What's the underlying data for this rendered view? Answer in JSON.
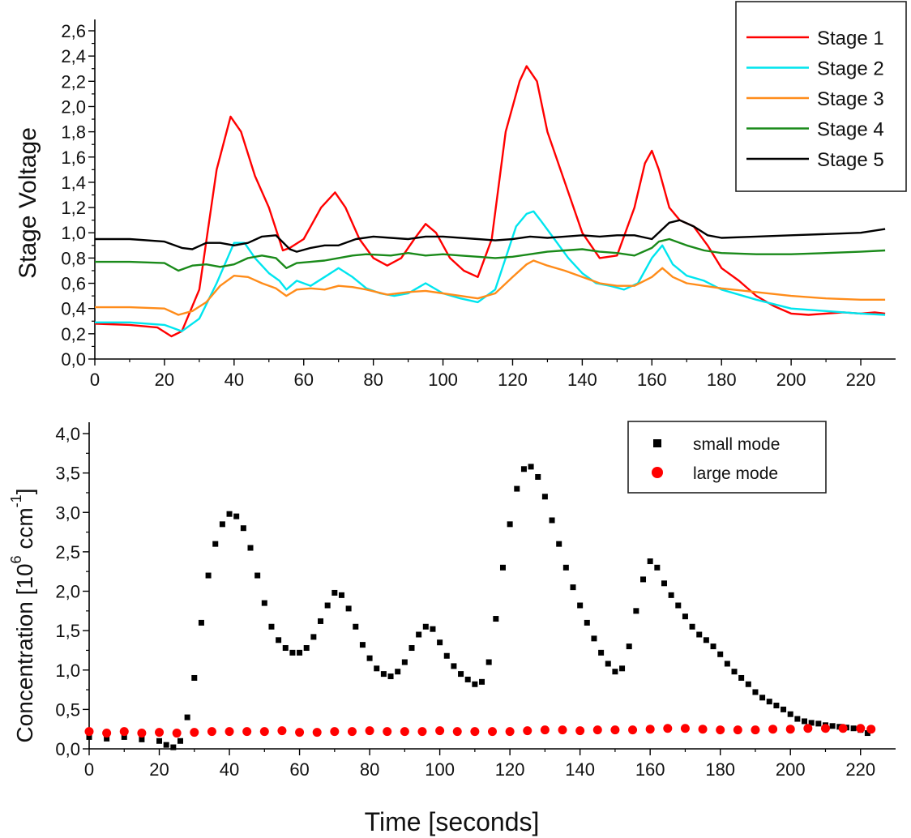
{
  "chart_data": [
    {
      "type": "line",
      "title": "",
      "xlabel": "",
      "ylabel": "Stage Voltage",
      "xlim": [
        0,
        230
      ],
      "ylim": [
        0,
        2.6
      ],
      "x_ticks": [
        0,
        20,
        40,
        60,
        80,
        100,
        120,
        140,
        160,
        180,
        200,
        220
      ],
      "x_tick_labels": [
        "0",
        "20",
        "40",
        "60",
        "80",
        "100",
        "120",
        "140",
        "160",
        "180",
        "200",
        "220"
      ],
      "y_ticks": [
        0,
        0.2,
        0.4,
        0.6,
        0.8,
        1.0,
        1.2,
        1.4,
        1.6,
        1.8,
        2.0,
        2.2,
        2.4,
        2.6
      ],
      "y_tick_labels": [
        "0,0",
        "0,2",
        "0,4",
        "0,6",
        "0,8",
        "1,0",
        "1,2",
        "1,4",
        "1,6",
        "1,8",
        "2,0",
        "2,2",
        "2,4",
        "2,6"
      ],
      "legend_position": "top-right",
      "grid": false,
      "series": [
        {
          "name": "Stage 1",
          "color": "#ff0000",
          "x": [
            0,
            10,
            18,
            22,
            25,
            30,
            35,
            39,
            42,
            46,
            50,
            54,
            56,
            60,
            65,
            69,
            72,
            76,
            80,
            84,
            88,
            92,
            95,
            98,
            102,
            106,
            110,
            114,
            118,
            122,
            124,
            127,
            130,
            135,
            140,
            145,
            150,
            155,
            158,
            160,
            162,
            165,
            168,
            172,
            176,
            180,
            185,
            190,
            195,
            200,
            205,
            210,
            215,
            220,
            224,
            227
          ],
          "y": [
            0.28,
            0.27,
            0.25,
            0.18,
            0.22,
            0.55,
            1.5,
            1.92,
            1.8,
            1.45,
            1.2,
            0.86,
            0.88,
            0.95,
            1.2,
            1.32,
            1.2,
            0.95,
            0.8,
            0.74,
            0.8,
            0.96,
            1.07,
            1.0,
            0.8,
            0.7,
            0.65,
            0.95,
            1.8,
            2.2,
            2.32,
            2.2,
            1.8,
            1.4,
            1.0,
            0.8,
            0.82,
            1.2,
            1.55,
            1.65,
            1.5,
            1.2,
            1.1,
            1.05,
            0.9,
            0.72,
            0.62,
            0.5,
            0.42,
            0.36,
            0.35,
            0.36,
            0.37,
            0.36,
            0.37,
            0.36
          ]
        },
        {
          "name": "Stage 2",
          "color": "#00e5ee",
          "x": [
            0,
            10,
            20,
            25,
            30,
            35,
            40,
            43,
            46,
            50,
            53,
            55,
            58,
            62,
            66,
            70,
            74,
            78,
            82,
            86,
            90,
            95,
            100,
            105,
            110,
            115,
            118,
            121,
            124,
            126,
            128,
            132,
            136,
            140,
            144,
            148,
            152,
            156,
            160,
            163,
            166,
            170,
            175,
            180,
            190,
            200,
            210,
            220,
            227
          ],
          "y": [
            0.29,
            0.29,
            0.27,
            0.22,
            0.32,
            0.6,
            0.92,
            0.92,
            0.8,
            0.68,
            0.62,
            0.55,
            0.62,
            0.58,
            0.65,
            0.72,
            0.65,
            0.56,
            0.52,
            0.5,
            0.52,
            0.6,
            0.52,
            0.48,
            0.45,
            0.55,
            0.8,
            1.05,
            1.15,
            1.17,
            1.1,
            0.95,
            0.8,
            0.68,
            0.6,
            0.58,
            0.55,
            0.6,
            0.8,
            0.9,
            0.75,
            0.66,
            0.62,
            0.55,
            0.47,
            0.4,
            0.38,
            0.36,
            0.35
          ]
        },
        {
          "name": "Stage 3",
          "color": "#ff8c1a",
          "x": [
            0,
            10,
            20,
            24,
            28,
            32,
            36,
            40,
            44,
            48,
            52,
            55,
            58,
            62,
            66,
            70,
            74,
            78,
            84,
            90,
            95,
            100,
            105,
            110,
            115,
            120,
            124,
            126,
            130,
            135,
            140,
            145,
            150,
            155,
            160,
            163,
            166,
            170,
            175,
            180,
            190,
            200,
            210,
            220,
            227
          ],
          "y": [
            0.41,
            0.41,
            0.4,
            0.35,
            0.38,
            0.45,
            0.58,
            0.66,
            0.65,
            0.6,
            0.56,
            0.5,
            0.55,
            0.56,
            0.55,
            0.58,
            0.57,
            0.55,
            0.51,
            0.53,
            0.54,
            0.52,
            0.5,
            0.48,
            0.52,
            0.65,
            0.75,
            0.78,
            0.74,
            0.7,
            0.65,
            0.6,
            0.58,
            0.58,
            0.65,
            0.72,
            0.65,
            0.6,
            0.58,
            0.56,
            0.53,
            0.5,
            0.48,
            0.47,
            0.47
          ]
        },
        {
          "name": "Stage 4",
          "color": "#1a8a1a",
          "x": [
            0,
            10,
            20,
            24,
            28,
            32,
            36,
            40,
            44,
            48,
            52,
            55,
            58,
            62,
            66,
            70,
            74,
            78,
            85,
            90,
            95,
            100,
            105,
            110,
            115,
            120,
            125,
            130,
            135,
            140,
            145,
            150,
            155,
            160,
            162,
            165,
            170,
            175,
            180,
            190,
            200,
            210,
            220,
            227
          ],
          "y": [
            0.77,
            0.77,
            0.76,
            0.7,
            0.74,
            0.75,
            0.73,
            0.75,
            0.8,
            0.82,
            0.8,
            0.72,
            0.76,
            0.77,
            0.78,
            0.8,
            0.82,
            0.83,
            0.82,
            0.84,
            0.82,
            0.83,
            0.82,
            0.81,
            0.8,
            0.81,
            0.83,
            0.85,
            0.86,
            0.87,
            0.85,
            0.84,
            0.82,
            0.88,
            0.93,
            0.95,
            0.9,
            0.86,
            0.84,
            0.83,
            0.83,
            0.84,
            0.85,
            0.86
          ]
        },
        {
          "name": "Stage 5",
          "color": "#000000",
          "x": [
            0,
            10,
            20,
            25,
            28,
            32,
            36,
            40,
            44,
            48,
            52,
            56,
            58,
            62,
            66,
            70,
            75,
            80,
            85,
            90,
            95,
            100,
            110,
            115,
            120,
            125,
            130,
            135,
            140,
            145,
            150,
            155,
            160,
            165,
            168,
            172,
            176,
            180,
            190,
            200,
            210,
            220,
            227
          ],
          "y": [
            0.95,
            0.95,
            0.93,
            0.88,
            0.87,
            0.92,
            0.92,
            0.9,
            0.92,
            0.97,
            0.98,
            0.87,
            0.85,
            0.88,
            0.9,
            0.9,
            0.95,
            0.97,
            0.96,
            0.95,
            0.97,
            0.97,
            0.95,
            0.94,
            0.95,
            0.97,
            0.96,
            0.97,
            0.98,
            0.97,
            0.98,
            0.98,
            0.95,
            1.08,
            1.1,
            1.05,
            0.98,
            0.96,
            0.97,
            0.98,
            0.99,
            1.0,
            1.03
          ]
        }
      ]
    },
    {
      "type": "scatter",
      "title": "",
      "xlabel": "Time [seconds]",
      "ylabel_parts": [
        "Concentration [10",
        "6",
        " ccm",
        "-1",
        "]"
      ],
      "xlim": [
        0,
        230
      ],
      "ylim": [
        0,
        4.0
      ],
      "x_ticks": [
        0,
        20,
        40,
        60,
        80,
        100,
        120,
        140,
        160,
        180,
        200,
        220
      ],
      "x_tick_labels": [
        "0",
        "20",
        "40",
        "60",
        "80",
        "100",
        "120",
        "140",
        "160",
        "180",
        "200",
        "220"
      ],
      "y_ticks": [
        0,
        0.5,
        1.0,
        1.5,
        2.0,
        2.5,
        3.0,
        3.5,
        4.0
      ],
      "y_tick_labels": [
        "0,0",
        "0,5",
        "1,0",
        "1,5",
        "2,0",
        "2,5",
        "3,0",
        "3,5",
        "4,0"
      ],
      "legend_position": "top-right",
      "grid": false,
      "series": [
        {
          "name": "small mode",
          "color": "#000000",
          "marker": "square",
          "x": [
            0,
            5,
            10,
            15,
            20,
            22,
            24,
            26,
            28,
            30,
            32,
            34,
            36,
            38,
            40,
            42,
            44,
            46,
            48,
            50,
            52,
            54,
            56,
            58,
            60,
            62,
            64,
            66,
            68,
            70,
            72,
            74,
            76,
            78,
            80,
            82,
            84,
            86,
            88,
            90,
            92,
            94,
            96,
            98,
            100,
            102,
            104,
            106,
            108,
            110,
            112,
            114,
            116,
            118,
            120,
            122,
            124,
            126,
            128,
            130,
            132,
            134,
            136,
            138,
            140,
            142,
            144,
            146,
            148,
            150,
            152,
            154,
            156,
            158,
            160,
            162,
            164,
            166,
            168,
            170,
            172,
            174,
            176,
            178,
            180,
            182,
            184,
            186,
            188,
            190,
            192,
            194,
            196,
            198,
            200,
            202,
            204,
            206,
            208,
            210,
            212,
            214,
            216,
            218,
            220,
            222
          ],
          "y": [
            0.15,
            0.13,
            0.15,
            0.12,
            0.1,
            0.05,
            0.02,
            0.1,
            0.4,
            0.9,
            1.6,
            2.2,
            2.6,
            2.85,
            2.98,
            2.95,
            2.8,
            2.55,
            2.2,
            1.85,
            1.55,
            1.38,
            1.28,
            1.22,
            1.22,
            1.28,
            1.42,
            1.62,
            1.82,
            1.98,
            1.95,
            1.78,
            1.55,
            1.32,
            1.15,
            1.02,
            0.95,
            0.92,
            0.98,
            1.1,
            1.28,
            1.45,
            1.55,
            1.52,
            1.35,
            1.18,
            1.05,
            0.95,
            0.88,
            0.82,
            0.85,
            1.1,
            1.65,
            2.3,
            2.85,
            3.3,
            3.55,
            3.58,
            3.45,
            3.2,
            2.9,
            2.6,
            2.3,
            2.05,
            1.82,
            1.6,
            1.4,
            1.22,
            1.08,
            0.98,
            1.02,
            1.3,
            1.75,
            2.15,
            2.38,
            2.3,
            2.1,
            1.95,
            1.82,
            1.68,
            1.55,
            1.45,
            1.38,
            1.3,
            1.2,
            1.08,
            0.98,
            0.9,
            0.82,
            0.72,
            0.65,
            0.6,
            0.55,
            0.5,
            0.44,
            0.38,
            0.35,
            0.33,
            0.32,
            0.3,
            0.29,
            0.28,
            0.27,
            0.26,
            0.24,
            0.2
          ]
        },
        {
          "name": "large mode",
          "color": "#ff0000",
          "marker": "circle",
          "x": [
            0,
            5,
            10,
            15,
            20,
            25,
            30,
            35,
            40,
            45,
            50,
            55,
            60,
            65,
            70,
            75,
            80,
            85,
            90,
            95,
            100,
            105,
            110,
            115,
            120,
            125,
            130,
            135,
            140,
            145,
            150,
            155,
            160,
            165,
            170,
            175,
            180,
            185,
            190,
            195,
            200,
            205,
            210,
            215,
            220,
            223
          ],
          "y": [
            0.22,
            0.2,
            0.22,
            0.2,
            0.21,
            0.2,
            0.21,
            0.22,
            0.22,
            0.22,
            0.22,
            0.23,
            0.21,
            0.21,
            0.22,
            0.22,
            0.23,
            0.22,
            0.22,
            0.22,
            0.23,
            0.22,
            0.22,
            0.22,
            0.22,
            0.23,
            0.24,
            0.24,
            0.23,
            0.24,
            0.24,
            0.24,
            0.25,
            0.26,
            0.26,
            0.25,
            0.24,
            0.24,
            0.24,
            0.25,
            0.25,
            0.26,
            0.26,
            0.26,
            0.26,
            0.25
          ]
        }
      ]
    }
  ]
}
